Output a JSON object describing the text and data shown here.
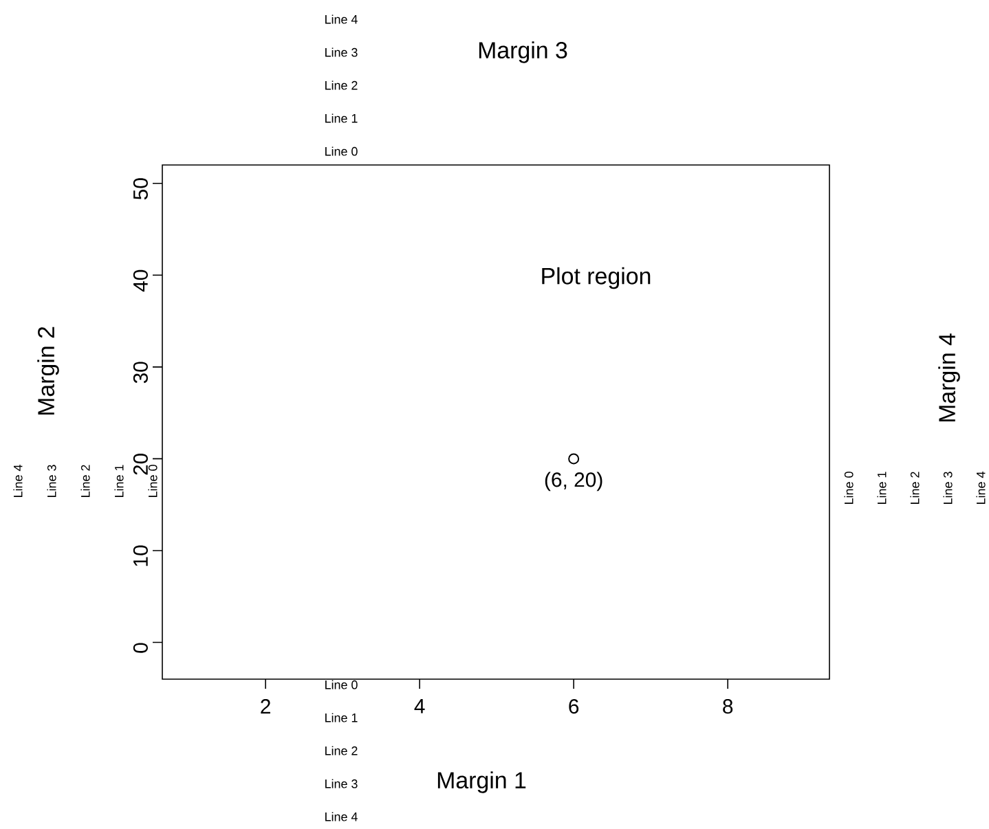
{
  "chart_data": {
    "type": "scatter",
    "x": [
      6
    ],
    "xlim": [
      0.66,
      9.32
    ],
    "ylim": [
      -4,
      52
    ],
    "xticks": [
      2,
      4,
      6,
      8
    ],
    "yticks": [
      0,
      10,
      20,
      30,
      40,
      50
    ],
    "marker": "circle",
    "series": [
      {
        "color": "#000000",
        "values": [
          20
        ]
      }
    ],
    "annotations": [
      "Plot region",
      {
        "text": "(6, 20)",
        "x": 6,
        "y": 20
      },
      "Margin 1",
      "Line 0",
      "Line 1",
      "Line 2",
      "Line 3",
      "Line 4",
      "Margin 2",
      "Line 0",
      "Line 1",
      "Line 2",
      "Line 3",
      "Line 4",
      "Margin 3",
      "Line 0",
      "Line 1",
      "Line 2",
      "Line 3",
      "Line 4",
      "Margin 4",
      "Line 0",
      "Line 1",
      "Line 2",
      "Line 3",
      "Line 4"
    ]
  }
}
